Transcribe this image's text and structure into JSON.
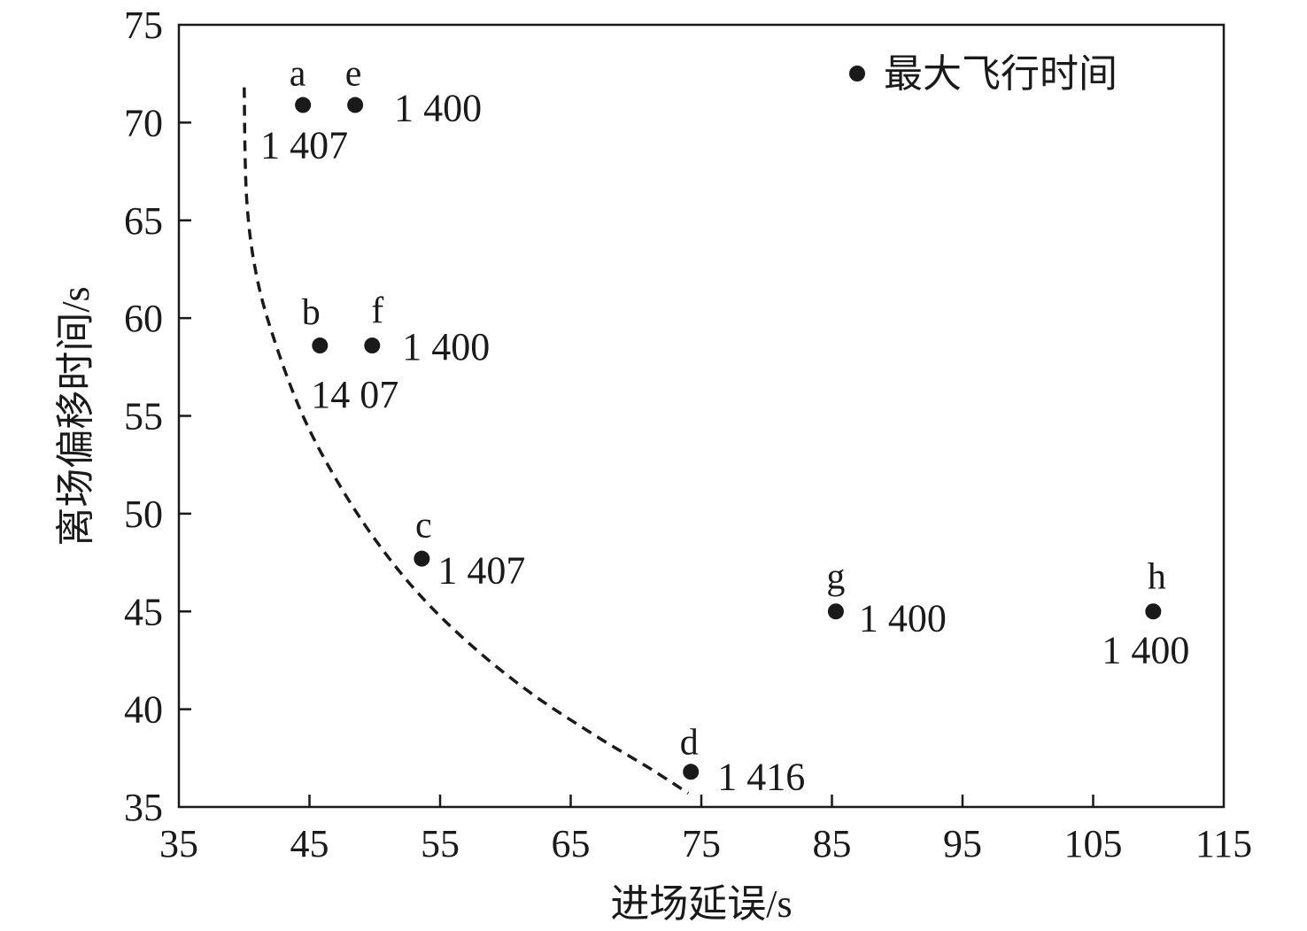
{
  "chart_data": {
    "type": "scatter",
    "title": "",
    "xlabel": "进场延误/s",
    "ylabel": "离场偏移时间/s",
    "xlim": [
      35,
      115
    ],
    "ylim": [
      35,
      75
    ],
    "xticks": [
      "35",
      "45",
      "55",
      "65",
      "75",
      "85",
      "95",
      "105",
      "115"
    ],
    "yticks": [
      "35",
      "40",
      "45",
      "50",
      "55",
      "60",
      "65",
      "70",
      "75"
    ],
    "grid": false,
    "legend": {
      "position": "top-right",
      "label": "最大飞行时间"
    },
    "points": [
      {
        "letter": "a",
        "x": 44.5,
        "y": 70.9,
        "value": "1 407"
      },
      {
        "letter": "e",
        "x": 48.5,
        "y": 70.9,
        "value": "1 400"
      },
      {
        "letter": "b",
        "x": 45.8,
        "y": 58.6,
        "value": "14 07"
      },
      {
        "letter": "f",
        "x": 49.8,
        "y": 58.6,
        "value": "1 400"
      },
      {
        "letter": "c",
        "x": 53.6,
        "y": 47.7,
        "value": "1 407"
      },
      {
        "letter": "d",
        "x": 74.2,
        "y": 36.8,
        "value": "1 416"
      },
      {
        "letter": "g",
        "x": 85.3,
        "y": 45.0,
        "value": "1 400"
      },
      {
        "letter": "h",
        "x": 109.6,
        "y": 45.0,
        "value": "1 400"
      }
    ],
    "frontier": {
      "style": "dashed",
      "x": [
        40.0,
        40.2,
        41.0,
        42.5,
        44.5,
        47.0,
        50.0,
        53.5,
        57.5,
        62.0,
        67.0,
        71.0,
        74.0
      ],
      "y": [
        71.8,
        66.0,
        62.0,
        58.5,
        55.0,
        51.8,
        48.7,
        45.8,
        43.2,
        40.8,
        38.6,
        37.0,
        35.7
      ]
    }
  }
}
